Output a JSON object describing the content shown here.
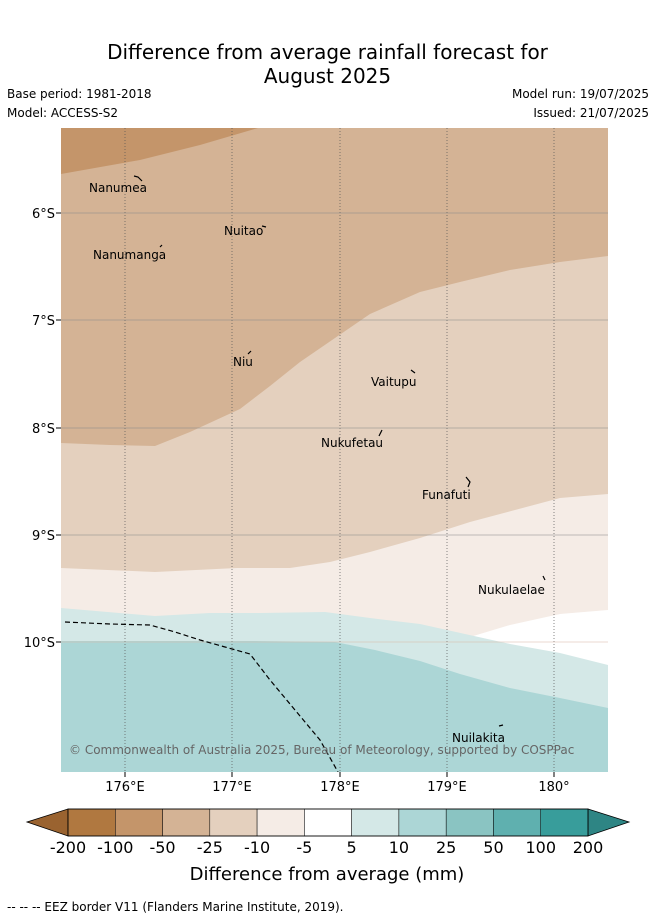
{
  "header": {
    "title_line1": "Difference from average rainfall forecast for",
    "title_line2": "August 2025",
    "base_period": "Base period: 1981-2018",
    "model": "Model: ACCESS-S2",
    "model_run": "Model run: 19/07/2025",
    "issued": "Issued: 21/07/2025"
  },
  "map": {
    "lat_ticks": [
      "6°S",
      "7°S",
      "8°S",
      "9°S",
      "10°S"
    ],
    "lon_ticks": [
      "176°E",
      "177°E",
      "178°E",
      "179°E",
      "180°"
    ],
    "places": [
      "Nanumea",
      "Nuitao",
      "Nanumanga",
      "Niu",
      "Vaitupu",
      "Nukufetau",
      "Funafuti",
      "Nukulaelae",
      "Nuilakita"
    ],
    "copyright": "© Commonwealth of Australia 2025, Bureau of Meteorology, supported by COSPPac",
    "band_colors": [
      "#b07840",
      "#c4956a",
      "#d4b395",
      "#e4d0be",
      "#f5ece6",
      "#ffffff",
      "#d4e8e7",
      "#acd6d6",
      "#8ac4c2",
      "#5fb0af",
      "#389d9b"
    ]
  },
  "colorbar": {
    "labels": [
      "-200",
      "-100",
      "-50",
      "-25",
      "-10",
      "-5",
      "5",
      "10",
      "25",
      "50",
      "100",
      "200"
    ],
    "colors": [
      "#b07840",
      "#c4956a",
      "#d4b395",
      "#e4d0be",
      "#f5ece6",
      "#ffffff",
      "#d4e8e7",
      "#acd6d6",
      "#8ac4c2",
      "#5fb0af",
      "#389d9b"
    ],
    "low_extend_color": "#9a6330",
    "high_extend_color": "#2e8584",
    "title": "Difference from average (mm)"
  },
  "footnote": "-- -- -- EEZ border V11 (Flanders Marine Institute, 2019)."
}
